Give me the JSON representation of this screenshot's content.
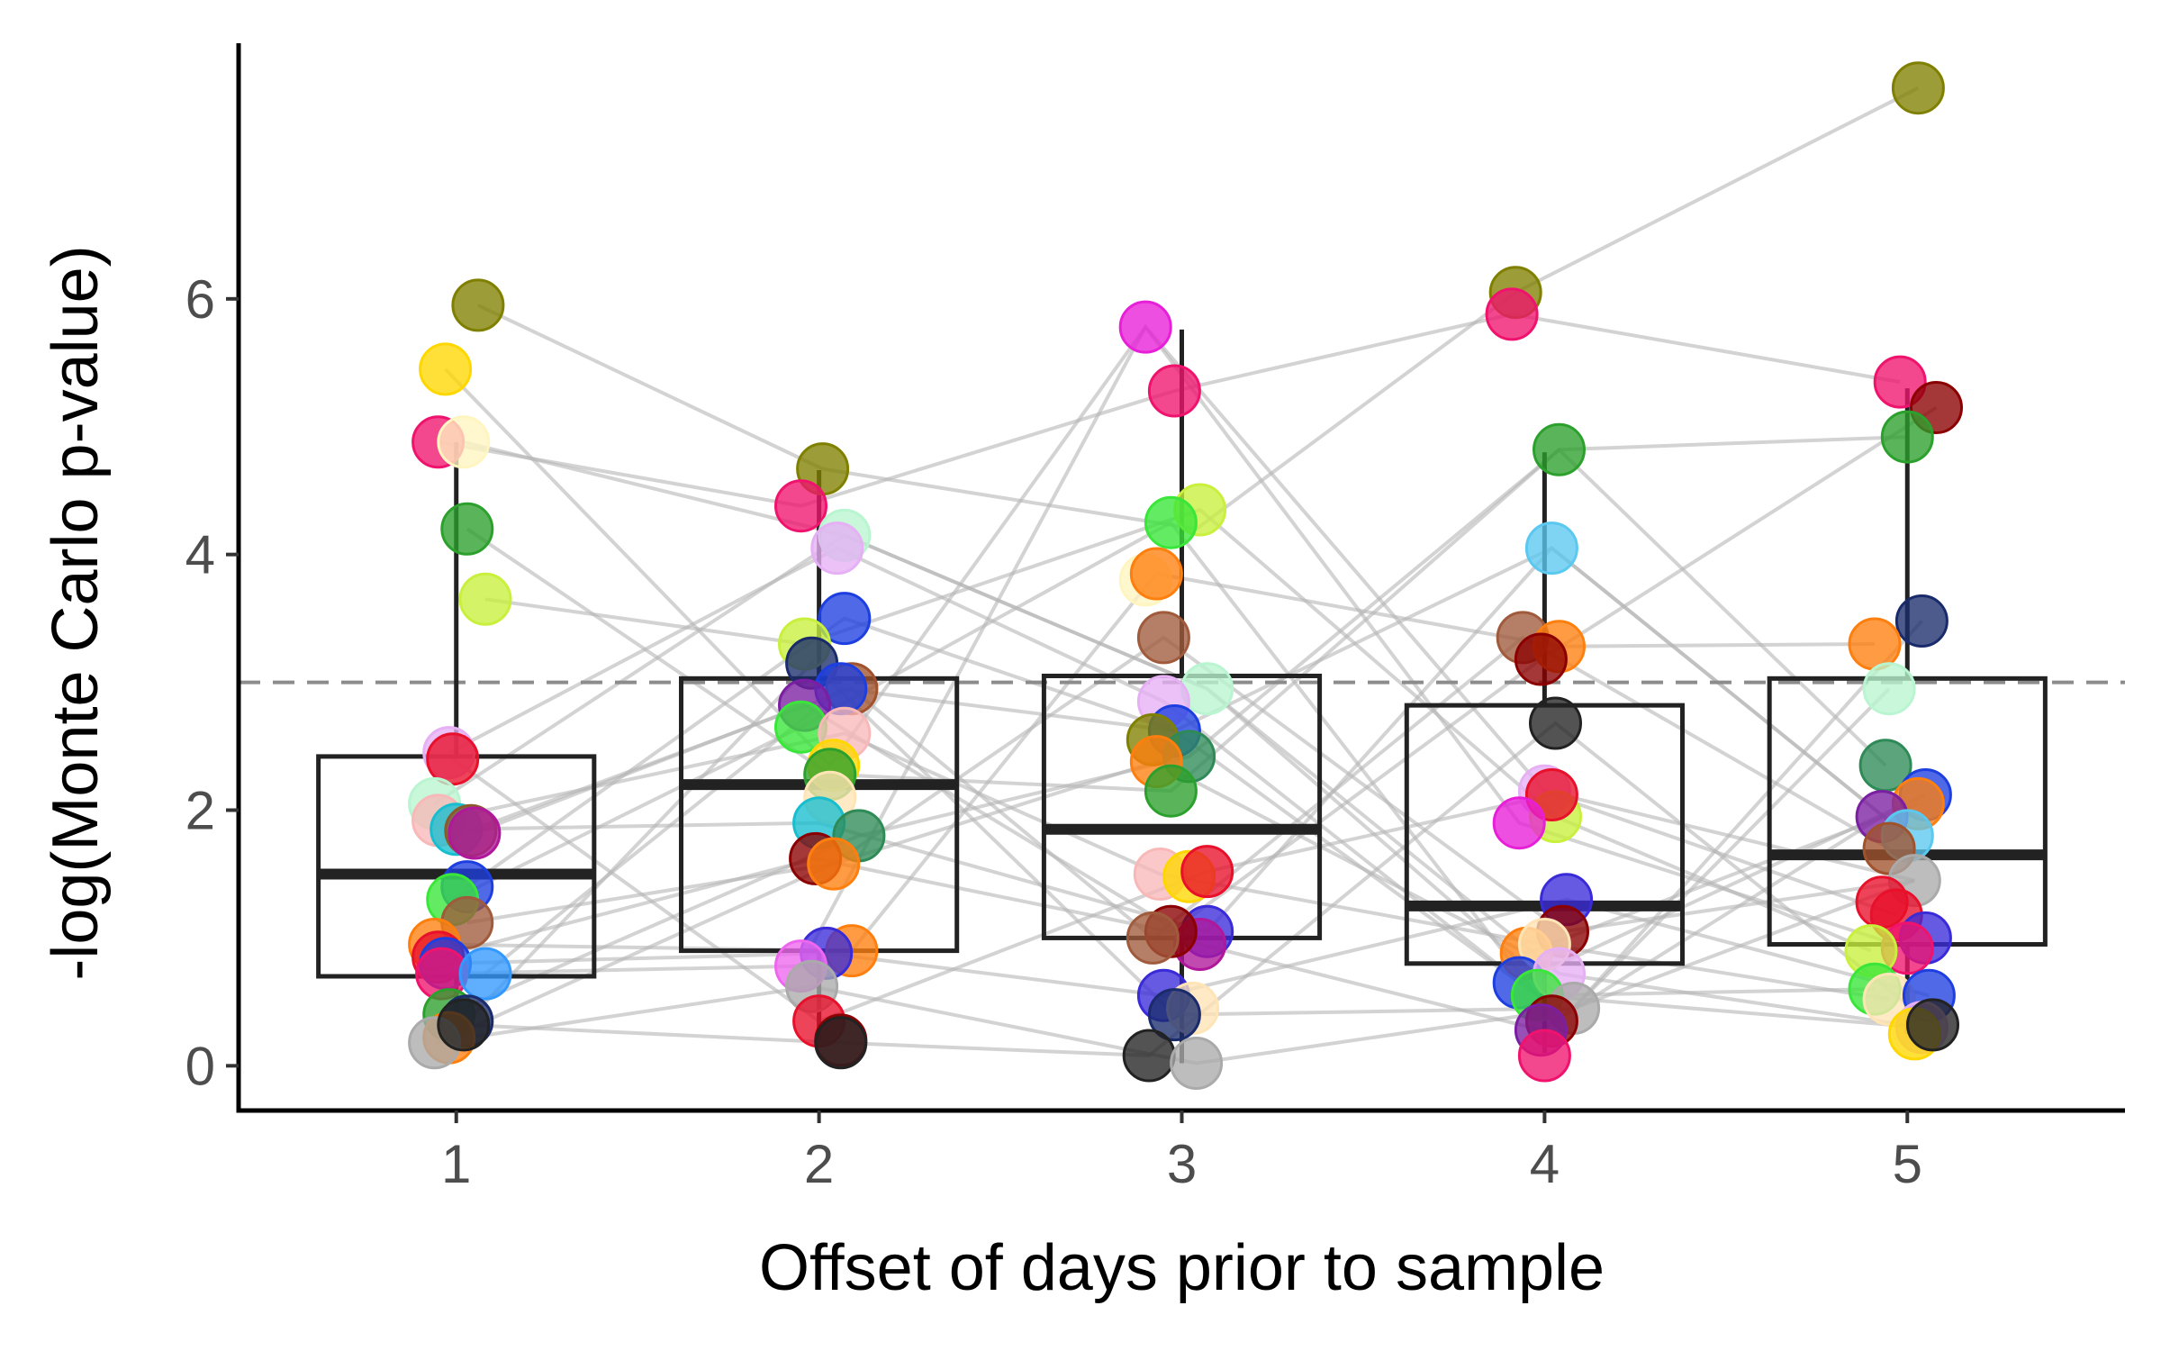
{
  "chart_data": {
    "type": "scatter",
    "overlay": [
      "boxplot",
      "connecting-lines",
      "dashed-reference-line"
    ],
    "xlabel": "Offset of days prior to sample",
    "ylabel": "-log(Monte Carlo p-value)",
    "categories": [
      "1",
      "2",
      "3",
      "4",
      "5"
    ],
    "yticks": [
      0,
      2,
      4,
      6
    ],
    "ylim": [
      -0.35,
      8.0
    ],
    "reference_line": 3.0,
    "grid": false,
    "boxplots": [
      {
        "x": "1",
        "min": 0.35,
        "q1": 0.7,
        "median": 1.5,
        "q3": 2.42,
        "max": 4.88
      },
      {
        "x": "2",
        "min": 0.2,
        "q1": 0.9,
        "median": 2.2,
        "q3": 3.03,
        "max": 4.66
      },
      {
        "x": "3",
        "min": 0.02,
        "q1": 1.0,
        "median": 1.85,
        "q3": 3.05,
        "max": 5.76
      },
      {
        "x": "4",
        "min": 0.1,
        "q1": 0.8,
        "median": 1.25,
        "q3": 2.82,
        "max": 4.8
      },
      {
        "x": "5",
        "min": 0.25,
        "q1": 0.95,
        "median": 1.65,
        "q3": 3.03,
        "max": 5.3
      }
    ],
    "points": [
      {
        "x": 1.06,
        "y": 5.95,
        "color": "#808000"
      },
      {
        "x": 0.97,
        "y": 5.45,
        "color": "#FFD700"
      },
      {
        "x": 0.95,
        "y": 4.88,
        "color": "#F0136E"
      },
      {
        "x": 1.02,
        "y": 4.88,
        "color": "#FFF5C0"
      },
      {
        "x": 1.03,
        "y": 4.2,
        "color": "#2CA02C"
      },
      {
        "x": 1.08,
        "y": 3.65,
        "color": "#C8F03C"
      },
      {
        "x": 0.98,
        "y": 2.45,
        "color": "#E6B0F5"
      },
      {
        "x": 0.99,
        "y": 2.4,
        "color": "#E8102A"
      },
      {
        "x": 0.94,
        "y": 2.05,
        "color": "#B8F5D0"
      },
      {
        "x": 0.95,
        "y": 1.92,
        "color": "#F9B8B8"
      },
      {
        "x": 1.0,
        "y": 1.85,
        "color": "#17BECF"
      },
      {
        "x": 1.04,
        "y": 1.84,
        "color": "#8B5A2B"
      },
      {
        "x": 1.05,
        "y": 1.82,
        "color": "#B0179A"
      },
      {
        "x": 1.03,
        "y": 1.4,
        "color": "#1E3FE0"
      },
      {
        "x": 0.99,
        "y": 1.3,
        "color": "#39E639"
      },
      {
        "x": 1.03,
        "y": 1.12,
        "color": "#A05A3C"
      },
      {
        "x": 0.94,
        "y": 0.95,
        "color": "#FF7F0E"
      },
      {
        "x": 0.95,
        "y": 0.85,
        "color": "#E8102A"
      },
      {
        "x": 0.97,
        "y": 0.8,
        "color": "#1E3FE0"
      },
      {
        "x": 0.96,
        "y": 0.72,
        "color": "#F0136E"
      },
      {
        "x": 1.08,
        "y": 0.72,
        "color": "#3399FF"
      },
      {
        "x": 0.98,
        "y": 0.4,
        "color": "#2CA02C"
      },
      {
        "x": 1.03,
        "y": 0.35,
        "color": "#1A2B6B"
      },
      {
        "x": 0.98,
        "y": 0.22,
        "color": "#FF7F0E"
      },
      {
        "x": 0.94,
        "y": 0.18,
        "color": "#AAAAAA"
      },
      {
        "x": 1.02,
        "y": 0.32,
        "color": "#222222"
      },
      {
        "x": 2.01,
        "y": 4.67,
        "color": "#808000"
      },
      {
        "x": 1.95,
        "y": 4.38,
        "color": "#F0136E"
      },
      {
        "x": 2.07,
        "y": 4.15,
        "color": "#B8F5D0"
      },
      {
        "x": 2.05,
        "y": 4.05,
        "color": "#E6B0F5"
      },
      {
        "x": 2.07,
        "y": 3.5,
        "color": "#1E3FE0"
      },
      {
        "x": 1.96,
        "y": 3.3,
        "color": "#C8F03C"
      },
      {
        "x": 1.98,
        "y": 3.15,
        "color": "#1A2B6B"
      },
      {
        "x": 2.09,
        "y": 2.95,
        "color": "#A0522D"
      },
      {
        "x": 2.06,
        "y": 2.95,
        "color": "#1E3FE0"
      },
      {
        "x": 1.96,
        "y": 2.82,
        "color": "#7B1FA2"
      },
      {
        "x": 1.95,
        "y": 2.65,
        "color": "#39E639"
      },
      {
        "x": 2.07,
        "y": 2.6,
        "color": "#F9B8B8"
      },
      {
        "x": 2.04,
        "y": 2.35,
        "color": "#FFD700"
      },
      {
        "x": 2.03,
        "y": 2.28,
        "color": "#2CA02C"
      },
      {
        "x": 2.03,
        "y": 2.1,
        "color": "#FFE4B5"
      },
      {
        "x": 2.0,
        "y": 1.9,
        "color": "#17BECF"
      },
      {
        "x": 2.11,
        "y": 1.8,
        "color": "#2E8B57"
      },
      {
        "x": 1.99,
        "y": 1.62,
        "color": "#8B0000"
      },
      {
        "x": 2.04,
        "y": 1.58,
        "color": "#FF7F0E"
      },
      {
        "x": 2.09,
        "y": 0.9,
        "color": "#FF7F0E"
      },
      {
        "x": 2.02,
        "y": 0.88,
        "color": "#3A2BD8"
      },
      {
        "x": 1.95,
        "y": 0.78,
        "color": "#EE66EE"
      },
      {
        "x": 1.98,
        "y": 0.62,
        "color": "#AAAAAA"
      },
      {
        "x": 2.0,
        "y": 0.35,
        "color": "#E8102A"
      },
      {
        "x": 2.06,
        "y": 0.2,
        "color": "#8B0000"
      },
      {
        "x": 2.06,
        "y": 0.18,
        "color": "#222222"
      },
      {
        "x": 2.9,
        "y": 5.78,
        "color": "#E81FD8"
      },
      {
        "x": 2.98,
        "y": 5.28,
        "color": "#F0136E"
      },
      {
        "x": 3.05,
        "y": 4.35,
        "color": "#C8F03C"
      },
      {
        "x": 2.97,
        "y": 4.25,
        "color": "#39E639"
      },
      {
        "x": 2.9,
        "y": 3.8,
        "color": "#FFF5C0"
      },
      {
        "x": 2.93,
        "y": 3.85,
        "color": "#FF7F0E"
      },
      {
        "x": 2.95,
        "y": 3.35,
        "color": "#A05A3C"
      },
      {
        "x": 3.07,
        "y": 2.95,
        "color": "#B8F5D0"
      },
      {
        "x": 2.95,
        "y": 2.85,
        "color": "#E6B0F5"
      },
      {
        "x": 2.98,
        "y": 2.62,
        "color": "#1E3FE0"
      },
      {
        "x": 2.92,
        "y": 2.55,
        "color": "#808000"
      },
      {
        "x": 3.02,
        "y": 2.42,
        "color": "#2E8B57"
      },
      {
        "x": 2.93,
        "y": 2.38,
        "color": "#FF7F0E"
      },
      {
        "x": 2.97,
        "y": 2.15,
        "color": "#2CA02C"
      },
      {
        "x": 2.94,
        "y": 1.5,
        "color": "#F9B8B8"
      },
      {
        "x": 3.02,
        "y": 1.48,
        "color": "#FFD700"
      },
      {
        "x": 3.07,
        "y": 1.52,
        "color": "#E8102A"
      },
      {
        "x": 3.07,
        "y": 1.05,
        "color": "#3A2BD8"
      },
      {
        "x": 3.05,
        "y": 0.95,
        "color": "#B0179A"
      },
      {
        "x": 2.97,
        "y": 1.05,
        "color": "#8B0000"
      },
      {
        "x": 2.92,
        "y": 1.0,
        "color": "#A05A3C"
      },
      {
        "x": 2.95,
        "y": 0.55,
        "color": "#3A2BD8"
      },
      {
        "x": 3.03,
        "y": 0.45,
        "color": "#FFE4B5"
      },
      {
        "x": 2.98,
        "y": 0.4,
        "color": "#1A2B6B"
      },
      {
        "x": 2.91,
        "y": 0.08,
        "color": "#222222"
      },
      {
        "x": 3.04,
        "y": 0.02,
        "color": "#AAAAAA"
      },
      {
        "x": 3.92,
        "y": 6.05,
        "color": "#808000"
      },
      {
        "x": 3.91,
        "y": 5.88,
        "color": "#F0136E"
      },
      {
        "x": 4.04,
        "y": 4.82,
        "color": "#2CA02C"
      },
      {
        "x": 4.02,
        "y": 4.05,
        "color": "#5BC8F0"
      },
      {
        "x": 3.94,
        "y": 3.35,
        "color": "#A05A3C"
      },
      {
        "x": 4.04,
        "y": 3.28,
        "color": "#FF7F0E"
      },
      {
        "x": 3.99,
        "y": 3.18,
        "color": "#8B0000"
      },
      {
        "x": 4.03,
        "y": 2.68,
        "color": "#222222"
      },
      {
        "x": 4.0,
        "y": 2.15,
        "color": "#E6B0F5"
      },
      {
        "x": 4.03,
        "y": 1.95,
        "color": "#C8F03C"
      },
      {
        "x": 4.02,
        "y": 2.12,
        "color": "#E8102A"
      },
      {
        "x": 3.93,
        "y": 1.9,
        "color": "#E81FD8"
      },
      {
        "x": 4.06,
        "y": 1.3,
        "color": "#3A2BD8"
      },
      {
        "x": 4.05,
        "y": 1.05,
        "color": "#8B0000"
      },
      {
        "x": 3.95,
        "y": 0.88,
        "color": "#FF7F0E"
      },
      {
        "x": 4.0,
        "y": 0.95,
        "color": "#FFE4B5"
      },
      {
        "x": 3.93,
        "y": 0.65,
        "color": "#1E3FE0"
      },
      {
        "x": 4.04,
        "y": 0.72,
        "color": "#E6B0F5"
      },
      {
        "x": 3.98,
        "y": 0.55,
        "color": "#39E639"
      },
      {
        "x": 4.08,
        "y": 0.45,
        "color": "#AAAAAA"
      },
      {
        "x": 4.02,
        "y": 0.35,
        "color": "#8B0000"
      },
      {
        "x": 3.99,
        "y": 0.28,
        "color": "#7B1FA2"
      },
      {
        "x": 4.0,
        "y": 0.08,
        "color": "#F0136E"
      },
      {
        "x": 5.03,
        "y": 7.65,
        "color": "#808000"
      },
      {
        "x": 4.98,
        "y": 5.35,
        "color": "#F0136E"
      },
      {
        "x": 5.08,
        "y": 5.15,
        "color": "#8B0000"
      },
      {
        "x": 5.0,
        "y": 4.92,
        "color": "#2CA02C"
      },
      {
        "x": 5.04,
        "y": 3.48,
        "color": "#1A2B6B"
      },
      {
        "x": 4.91,
        "y": 3.3,
        "color": "#FF7F0E"
      },
      {
        "x": 4.95,
        "y": 2.95,
        "color": "#B8F5D0"
      },
      {
        "x": 4.94,
        "y": 2.35,
        "color": "#2E8B57"
      },
      {
        "x": 5.05,
        "y": 2.12,
        "color": "#1E3FE0"
      },
      {
        "x": 5.03,
        "y": 2.05,
        "color": "#FF7F0E"
      },
      {
        "x": 4.93,
        "y": 1.95,
        "color": "#7B1FA2"
      },
      {
        "x": 5.0,
        "y": 1.8,
        "color": "#5BC8F0"
      },
      {
        "x": 4.95,
        "y": 1.7,
        "color": "#A0522D"
      },
      {
        "x": 5.02,
        "y": 1.45,
        "color": "#AAAAAA"
      },
      {
        "x": 4.93,
        "y": 1.28,
        "color": "#E8102A"
      },
      {
        "x": 4.97,
        "y": 1.18,
        "color": "#E8102A"
      },
      {
        "x": 5.05,
        "y": 1.0,
        "color": "#3A2BD8"
      },
      {
        "x": 5.0,
        "y": 0.92,
        "color": "#F0136E"
      },
      {
        "x": 4.9,
        "y": 0.9,
        "color": "#C8F03C"
      },
      {
        "x": 4.91,
        "y": 0.6,
        "color": "#39E639"
      },
      {
        "x": 4.95,
        "y": 0.52,
        "color": "#FFE4B5"
      },
      {
        "x": 5.06,
        "y": 0.55,
        "color": "#1E3FE0"
      },
      {
        "x": 5.04,
        "y": 0.3,
        "color": "#E6B0F5"
      },
      {
        "x": 5.02,
        "y": 0.25,
        "color": "#FFD700"
      },
      {
        "x": 5.07,
        "y": 0.32,
        "color": "#222222"
      }
    ],
    "connections": [
      [
        [
          1.06,
          5.95
        ],
        [
          2.01,
          4.67
        ],
        [
          3.04,
          4.2
        ],
        [
          3.92,
          6.05
        ],
        [
          5.03,
          7.65
        ]
      ],
      [
        [
          0.97,
          5.45
        ],
        [
          2.03,
          2.35
        ],
        [
          2.9,
          5.78
        ],
        [
          4.0,
          2.15
        ],
        [
          5.02,
          1.45
        ]
      ],
      [
        [
          0.95,
          4.88
        ],
        [
          1.95,
          4.38
        ],
        [
          2.98,
          5.28
        ],
        [
          3.91,
          5.88
        ],
        [
          4.98,
          5.35
        ]
      ],
      [
        [
          1.02,
          4.88
        ],
        [
          2.07,
          4.15
        ],
        [
          3.07,
          2.95
        ],
        [
          4.04,
          0.72
        ],
        [
          5.04,
          0.3
        ]
      ],
      [
        [
          1.03,
          4.2
        ],
        [
          2.03,
          2.28
        ],
        [
          2.97,
          2.15
        ],
        [
          4.04,
          4.82
        ],
        [
          5.0,
          4.92
        ]
      ],
      [
        [
          1.08,
          3.65
        ],
        [
          1.96,
          3.3
        ],
        [
          3.05,
          4.35
        ],
        [
          4.03,
          1.95
        ],
        [
          4.9,
          0.9
        ]
      ],
      [
        [
          0.98,
          2.45
        ],
        [
          2.05,
          4.05
        ],
        [
          2.95,
          2.85
        ],
        [
          3.98,
          0.55
        ],
        [
          5.04,
          0.3
        ]
      ],
      [
        [
          0.99,
          2.4
        ],
        [
          2.0,
          0.35
        ],
        [
          3.07,
          1.52
        ],
        [
          4.02,
          2.12
        ],
        [
          4.97,
          1.18
        ]
      ],
      [
        [
          0.94,
          2.05
        ],
        [
          2.07,
          4.15
        ],
        [
          3.07,
          2.95
        ],
        [
          4.08,
          0.45
        ],
        [
          4.95,
          2.95
        ]
      ],
      [
        [
          0.95,
          1.92
        ],
        [
          2.07,
          2.6
        ],
        [
          2.94,
          1.5
        ],
        [
          4.0,
          0.95
        ],
        [
          4.95,
          0.52
        ]
      ],
      [
        [
          1.0,
          1.85
        ],
        [
          2.0,
          1.9
        ],
        [
          3.07,
          1.05
        ],
        [
          4.02,
          4.05
        ],
        [
          5.0,
          1.8
        ]
      ],
      [
        [
          1.04,
          1.84
        ],
        [
          2.09,
          2.95
        ],
        [
          2.92,
          1.0
        ],
        [
          3.94,
          3.35
        ],
        [
          4.95,
          1.7
        ]
      ],
      [
        [
          1.05,
          1.82
        ],
        [
          1.96,
          2.82
        ],
        [
          3.05,
          0.95
        ],
        [
          3.99,
          0.28
        ],
        [
          4.93,
          1.95
        ]
      ],
      [
        [
          1.03,
          1.4
        ],
        [
          2.07,
          3.5
        ],
        [
          2.98,
          2.62
        ],
        [
          3.93,
          0.65
        ],
        [
          5.05,
          2.12
        ]
      ],
      [
        [
          0.99,
          1.3
        ],
        [
          1.95,
          2.65
        ],
        [
          2.97,
          4.25
        ],
        [
          3.98,
          0.55
        ],
        [
          4.91,
          0.6
        ]
      ],
      [
        [
          1.03,
          1.12
        ],
        [
          2.04,
          1.58
        ],
        [
          2.95,
          3.35
        ],
        [
          4.05,
          1.05
        ],
        [
          5.02,
          1.45
        ]
      ],
      [
        [
          0.94,
          0.95
        ],
        [
          2.09,
          0.9
        ],
        [
          2.93,
          3.85
        ],
        [
          4.04,
          3.28
        ],
        [
          4.91,
          3.3
        ]
      ],
      [
        [
          0.95,
          0.85
        ],
        [
          1.99,
          1.62
        ],
        [
          2.97,
          1.05
        ],
        [
          3.99,
          3.18
        ],
        [
          5.08,
          5.15
        ]
      ],
      [
        [
          0.97,
          0.8
        ],
        [
          2.02,
          0.88
        ],
        [
          2.95,
          0.55
        ],
        [
          4.06,
          1.3
        ],
        [
          5.06,
          0.55
        ]
      ],
      [
        [
          0.96,
          0.72
        ],
        [
          1.95,
          0.78
        ],
        [
          2.9,
          5.78
        ],
        [
          3.93,
          1.9
        ],
        [
          5.0,
          0.92
        ]
      ],
      [
        [
          1.08,
          0.72
        ],
        [
          2.06,
          2.95
        ],
        [
          2.98,
          2.62
        ],
        [
          4.02,
          4.05
        ],
        [
          5.0,
          1.8
        ]
      ],
      [
        [
          0.98,
          0.4
        ],
        [
          2.11,
          1.8
        ],
        [
          3.02,
          2.42
        ],
        [
          4.04,
          4.82
        ],
        [
          4.94,
          2.35
        ]
      ],
      [
        [
          1.03,
          0.35
        ],
        [
          1.98,
          3.15
        ],
        [
          2.98,
          0.4
        ],
        [
          4.08,
          0.45
        ],
        [
          5.04,
          3.48
        ]
      ],
      [
        [
          0.98,
          0.22
        ],
        [
          2.04,
          1.58
        ],
        [
          2.93,
          2.38
        ],
        [
          3.95,
          0.88
        ],
        [
          5.03,
          2.05
        ]
      ],
      [
        [
          0.94,
          0.18
        ],
        [
          1.98,
          0.62
        ],
        [
          3.04,
          0.02
        ],
        [
          4.08,
          0.45
        ],
        [
          5.02,
          1.45
        ]
      ],
      [
        [
          1.02,
          0.32
        ],
        [
          2.06,
          0.18
        ],
        [
          2.91,
          0.08
        ],
        [
          4.03,
          2.68
        ],
        [
          5.07,
          0.32
        ]
      ]
    ]
  }
}
